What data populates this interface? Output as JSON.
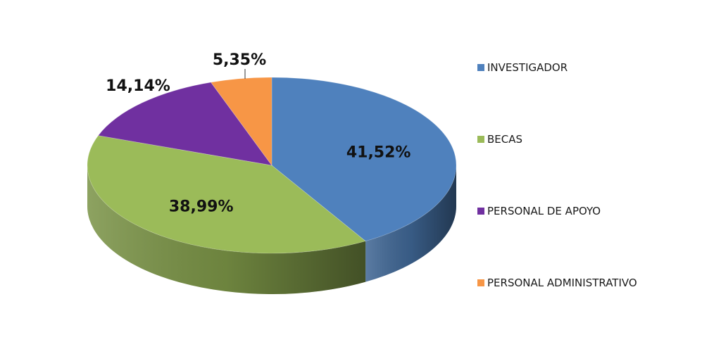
{
  "chart_data": {
    "type": "pie",
    "title": "",
    "categories": [
      "INVESTIGADOR",
      "BECAS",
      "PERSONAL DE APOYO",
      "PERSONAL ADMINISTRATIVO"
    ],
    "values": [
      41.52,
      38.99,
      14.14,
      5.35
    ],
    "value_labels": [
      "41,52%",
      "38,99%",
      "14,14%",
      "5,35%"
    ],
    "colors": [
      "#4f81bd",
      "#9bbb59",
      "#7030a0",
      "#f79646"
    ],
    "legend_position": "right",
    "style": "3d-pie"
  }
}
